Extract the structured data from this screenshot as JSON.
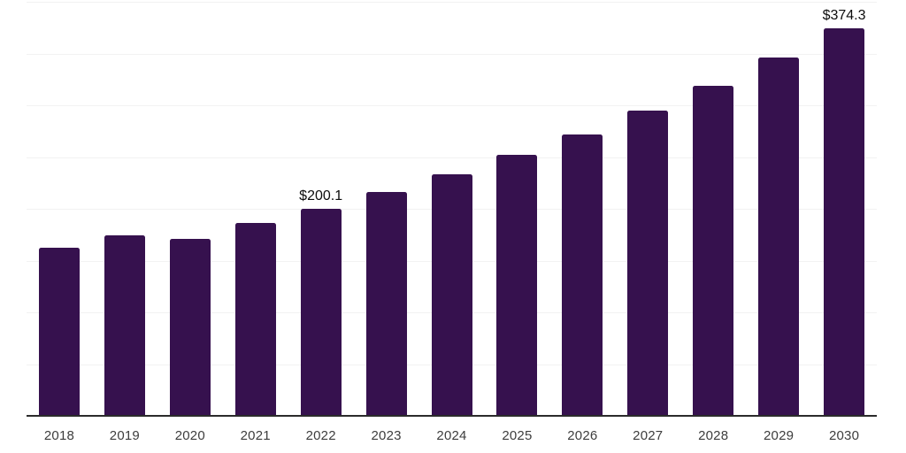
{
  "chart_data": {
    "type": "bar",
    "title": "",
    "xlabel": "",
    "ylabel": "",
    "categories": [
      "2018",
      "2019",
      "2020",
      "2021",
      "2022",
      "2023",
      "2024",
      "2025",
      "2026",
      "2027",
      "2028",
      "2029",
      "2030"
    ],
    "values": [
      162,
      174,
      171,
      186,
      200.1,
      216,
      233,
      252,
      272,
      295,
      319,
      346,
      374.3
    ],
    "bar_labels": [
      "",
      "",
      "",
      "",
      "$200.1",
      "",
      "",
      "",
      "",
      "",
      "",
      "",
      "$374.3"
    ],
    "ylim": [
      0,
      400
    ],
    "gridline_step": 50,
    "grid": true,
    "y_tick_labels_visible": false,
    "legend_position": "none",
    "colors": {
      "bar": "#36114e",
      "axis_line": "#2b2b2b",
      "gridline": "#f2f2f2",
      "tick_label": "#3d3d3d",
      "value_label": "#0d0d0d",
      "background": "#ffffff"
    }
  }
}
